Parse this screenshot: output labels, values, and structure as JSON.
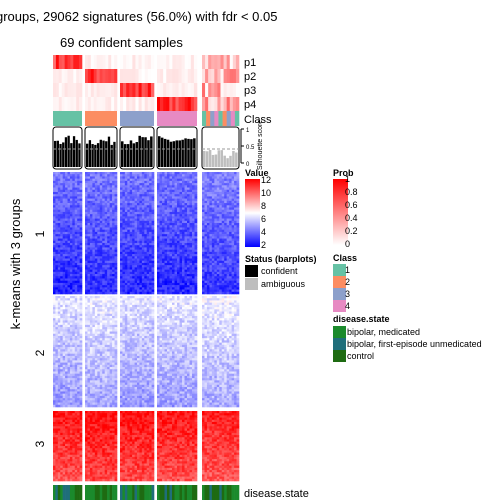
{
  "title": "groups, 29062 signatures (56.0%) with fdr < 0.05",
  "subtitle": "69 confident samples",
  "row_labels": [
    "p1",
    "p2",
    "p3",
    "p4"
  ],
  "class_label": "Class",
  "silhouette_label": "Silhouette score",
  "silhouette_ticks": [
    "1",
    "0.5",
    "0"
  ],
  "ylabel": "k-means with 3 groups",
  "row_groups": [
    "1",
    "2",
    "3"
  ],
  "bottom_label": "disease.state",
  "colors": {
    "class1": "#66C2A5",
    "class2": "#FC8D62",
    "class3": "#8DA0CB",
    "class4": "#E78AC3",
    "value_low": "#0000FF",
    "value_mid": "#FFFFFF",
    "value_high": "#FF0000",
    "confident": "#000000",
    "ambiguous": "#BEBEBE",
    "bipolar_medicated": "#1B8A2C",
    "bipolar_unmedicated": "#1F6E7A",
    "control": "#1E6B12"
  },
  "legends": {
    "value": {
      "title": "Value",
      "ticks": [
        "12",
        "10",
        "8",
        "6",
        "4",
        "2"
      ]
    },
    "prob": {
      "title": "Prob",
      "ticks": [
        "1",
        "0.8",
        "0.6",
        "0.4",
        "0.2",
        "0"
      ]
    },
    "status": {
      "title": "Status (barplots)",
      "items": [
        "confident",
        "ambiguous"
      ]
    },
    "class": {
      "title": "Class",
      "items": [
        "1",
        "2",
        "3",
        "4"
      ]
    },
    "disease": {
      "title": "disease.state",
      "items": [
        "bipolar, medicated",
        "bipolar, first-episode unmedicated",
        "control"
      ]
    }
  },
  "chart_data": {
    "type": "heatmap",
    "title": "groups, 29062 signatures (56.0%) with fdr < 0.05",
    "subtitle": "69 confident samples",
    "ylabel": "k-means with 3 groups",
    "row_groups": [
      "1",
      "2",
      "3"
    ],
    "value_range": [
      2,
      12
    ],
    "prob_range": [
      0,
      1
    ],
    "column_groups": [
      {
        "class": "1",
        "confident": true
      },
      {
        "class": "2",
        "confident": true
      },
      {
        "class": "3",
        "confident": true
      },
      {
        "class": "4",
        "confident": true
      },
      {
        "class": "mixed",
        "confident": false
      }
    ],
    "group_mean_value": [
      [
        3.5,
        3.6,
        3.5,
        3.5,
        3.8
      ],
      [
        6.0,
        6.2,
        6.0,
        6.1,
        6.3
      ],
      [
        11.0,
        11.2,
        11.1,
        11.0,
        10.8
      ]
    ],
    "silhouette_mean": [
      0.75,
      0.72,
      0.76,
      0.74,
      0.35
    ]
  }
}
